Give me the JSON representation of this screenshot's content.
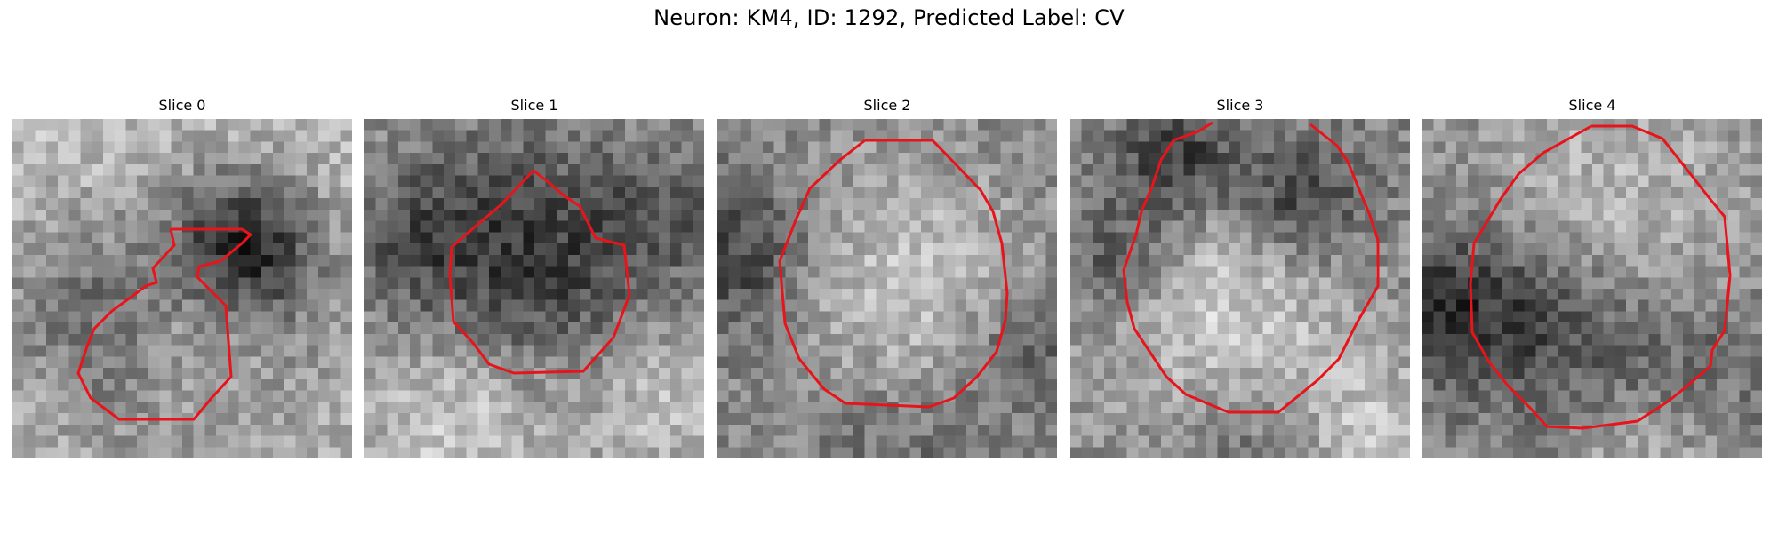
{
  "figure": {
    "title": "Neuron: KM4, ID: 1292, Predicted Label: CV",
    "contour_color": "#e8141b",
    "colormap": "grayscale",
    "panels": [
      {
        "label": "Slice 0",
        "icon": "microscopy-slice"
      },
      {
        "label": "Slice 1",
        "icon": "microscopy-slice"
      },
      {
        "label": "Slice 2",
        "icon": "microscopy-slice"
      },
      {
        "label": "Slice 3",
        "icon": "microscopy-slice"
      },
      {
        "label": "Slice 4",
        "icon": "microscopy-slice"
      }
    ]
  }
}
